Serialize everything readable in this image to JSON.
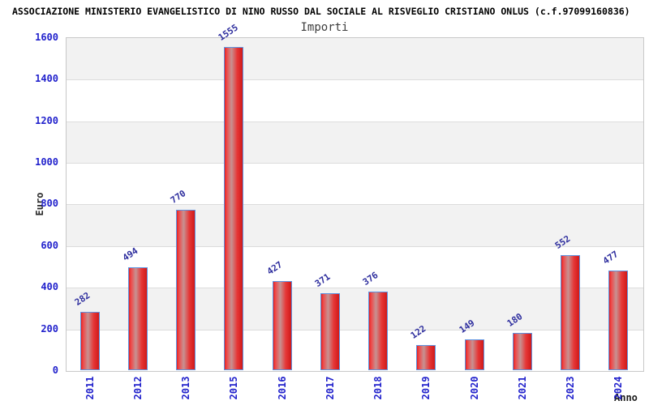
{
  "header": {
    "title": "ASSOCIAZIONE MINISTERIO EVANGELISTICO DI NINO RUSSO DAL SOCIALE AL RISVEGLIO CRISTIANO ONLUS (c.f.97099160836)"
  },
  "chart_data": {
    "type": "bar",
    "title": "Importi",
    "xlabel": "Anno",
    "ylabel": "Euro",
    "categories": [
      "2011",
      "2012",
      "2013",
      "2015",
      "2016",
      "2017",
      "2018",
      "2019",
      "2020",
      "2021",
      "2023",
      "2024"
    ],
    "values": [
      282,
      494,
      770,
      1555,
      427,
      371,
      376,
      122,
      149,
      180,
      552,
      477
    ],
    "ylim": [
      0,
      1600
    ],
    "y_ticks": [
      0,
      200,
      400,
      600,
      800,
      1000,
      1200,
      1400,
      1600
    ],
    "grid": true,
    "legend": "none",
    "colors": {
      "bar_fill": "#e11f1f",
      "bar_fill_light": "#c79292",
      "bar_border": "#5e93e0",
      "axis_text": "#2222cc",
      "value_text": "#2e2e9e",
      "band_gray": "#f2f2f2",
      "band_white": "#ffffff",
      "title_text": "#000000",
      "subtitle_text": "#3d3d3d"
    }
  }
}
